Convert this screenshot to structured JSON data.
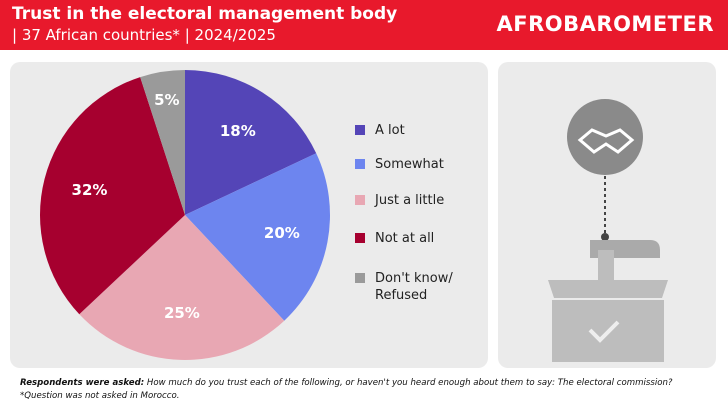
{
  "chart_data": {
    "type": "pie",
    "title": "Trust in the electoral management body",
    "subtitle": "| 37 African countries* | 2024/2025",
    "brand": "AFROBAROMETER",
    "categories": [
      "A lot",
      "Somewhat",
      "Just a little",
      "Not at all",
      "Don't know/ Refused"
    ],
    "values": [
      18,
      20,
      25,
      32,
      5
    ],
    "value_labels": [
      "18%",
      "20%",
      "25%",
      "32%",
      "5%"
    ],
    "colors": [
      "#5445b7",
      "#6d85ef",
      "#e8a7b3",
      "#a6002f",
      "#9a9a9a"
    ],
    "question_prefix": "Respondents were asked:",
    "question": "How much do you trust each of the following, or haven't you heard enough about them to say: The electoral commission?",
    "footnote": "*Question was not asked in Morocco."
  }
}
